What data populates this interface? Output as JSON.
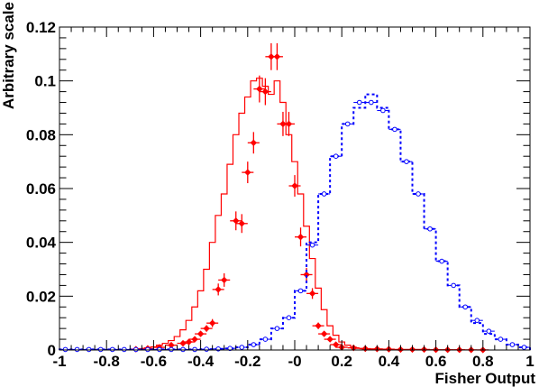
{
  "chart_data": {
    "type": "line",
    "title": "",
    "xlabel": "Fisher Output",
    "ylabel": "Arbitrary scale",
    "xlim": [
      -1,
      1
    ],
    "ylim": [
      0,
      0.12
    ],
    "x_ticks": [
      -1,
      -0.8,
      -0.6,
      -0.4,
      -0.2,
      0,
      0.2,
      0.4,
      0.6,
      0.8,
      1
    ],
    "x_tick_labels": [
      "-1",
      "-0.8",
      "-0.6",
      "-0.4",
      "-0.2",
      "-0",
      "0.2",
      "0.4",
      "0.6",
      "0.8",
      "1"
    ],
    "y_ticks": [
      0,
      0.02,
      0.04,
      0.06,
      0.08,
      0.1,
      0.12
    ],
    "y_tick_labels": [
      "0",
      "0.02",
      "0.04",
      "0.06",
      "0.08",
      "0.1",
      "0.12"
    ],
    "grid": false,
    "legend": "none",
    "bin_edges": [
      -1.0,
      -0.95,
      -0.9,
      -0.85,
      -0.8,
      -0.75,
      -0.7,
      -0.65,
      -0.6,
      -0.55,
      -0.5,
      -0.45,
      -0.4,
      -0.35,
      -0.3,
      -0.25,
      -0.2,
      -0.15,
      -0.1,
      -0.05,
      0.0,
      0.05,
      0.1,
      0.15,
      0.2,
      0.25,
      0.3,
      0.35,
      0.4,
      0.45,
      0.5,
      0.55,
      0.6,
      0.65,
      0.7,
      0.75,
      0.8,
      0.85,
      0.9,
      0.95,
      1.0
    ],
    "bin_width": 0.05,
    "series": [
      {
        "style": "histogram",
        "color": "#ff0000",
        "bin_centers": [
          -0.675,
          -0.65,
          -0.625,
          -0.6,
          -0.575,
          -0.55,
          -0.525,
          -0.5,
          -0.475,
          -0.45,
          -0.425,
          -0.4,
          -0.375,
          -0.35,
          -0.325,
          -0.3,
          -0.275,
          -0.25,
          -0.225,
          -0.2,
          -0.175,
          -0.15,
          -0.125,
          -0.1,
          -0.075,
          -0.05,
          -0.025,
          0.0,
          0.025,
          0.05,
          0.075,
          0.1,
          0.125,
          0.15,
          0.175,
          0.2,
          0.225,
          0.25,
          0.275,
          0.3,
          0.325,
          0.35,
          0.375,
          0.4,
          0.425,
          0.45
        ],
        "values": [
          0.0003,
          0.0005,
          0.0008,
          0.0012,
          0.0018,
          0.0025,
          0.0035,
          0.005,
          0.0075,
          0.011,
          0.016,
          0.022,
          0.03,
          0.04,
          0.05,
          0.058,
          0.069,
          0.08,
          0.088,
          0.094,
          0.1,
          0.101,
          0.098,
          0.095,
          0.1,
          0.092,
          0.08,
          0.07,
          0.058,
          0.046,
          0.034,
          0.023,
          0.015,
          0.009,
          0.0055,
          0.003,
          0.0018,
          0.001,
          0.0006,
          0.0003,
          0.0002,
          0.0001,
          5e-05,
          3e-05,
          2e-05,
          1e-05
        ]
      },
      {
        "style": "points",
        "color": "#ff0000",
        "x": [
          -0.675,
          -0.625,
          -0.575,
          -0.525,
          -0.475,
          -0.45,
          -0.425,
          -0.4,
          -0.375,
          -0.35,
          -0.325,
          -0.3,
          -0.25,
          -0.225,
          -0.2,
          -0.175,
          -0.15,
          -0.125,
          -0.1,
          -0.075,
          -0.05,
          -0.025,
          0.0,
          0.025,
          0.05,
          0.075,
          0.1,
          0.125,
          0.15,
          0.175,
          0.2,
          0.25,
          0.3,
          0.35,
          0.4,
          0.45,
          0.5,
          0.55,
          0.6,
          0.65,
          0.7,
          0.75,
          0.8
        ],
        "values": [
          0.0003,
          0.0006,
          0.001,
          0.0018,
          0.0025,
          0.003,
          0.004,
          0.006,
          0.008,
          0.01,
          0.0225,
          0.026,
          0.048,
          0.047,
          0.066,
          0.077,
          0.097,
          0.096,
          0.109,
          0.109,
          0.084,
          0.084,
          0.061,
          0.042,
          0.028,
          0.021,
          0.009,
          0.006,
          0.004,
          0.002,
          0.001,
          0.0008,
          0.0005,
          0.0004,
          0.0003,
          0.0002,
          0.0002,
          0.0002,
          0.0001,
          0.0001,
          0.0001,
          5e-05,
          3e-05
        ],
        "x_error": 0.025,
        "y_errors": [
          0.0003,
          0.0003,
          0.0004,
          0.0005,
          0.0006,
          0.0006,
          0.0008,
          0.001,
          0.0012,
          0.0015,
          0.0022,
          0.0025,
          0.0035,
          0.0035,
          0.004,
          0.004,
          0.005,
          0.005,
          0.005,
          0.005,
          0.0045,
          0.0045,
          0.004,
          0.0035,
          0.0025,
          0.002,
          0.0012,
          0.001,
          0.0008,
          0.0005,
          0.0004,
          0.0003,
          0.0003,
          0.0002,
          0.0002,
          0.0002,
          0.0002,
          0.0002,
          0.0001,
          0.0001,
          0.0001,
          0.0001,
          0.0001
        ]
      },
      {
        "style": "histogram-dashed",
        "color": "#0000ff",
        "bin_centers": [
          -0.975,
          -0.925,
          -0.875,
          -0.825,
          -0.775,
          -0.725,
          -0.675,
          -0.625,
          -0.575,
          -0.525,
          -0.475,
          -0.425,
          -0.375,
          -0.325,
          -0.275,
          -0.225,
          -0.175,
          -0.125,
          -0.075,
          -0.025,
          0.025,
          0.075,
          0.125,
          0.175,
          0.225,
          0.275,
          0.325,
          0.375,
          0.425,
          0.475,
          0.525,
          0.575,
          0.625,
          0.675,
          0.725,
          0.775,
          0.825,
          0.875,
          0.925,
          0.975
        ],
        "values": [
          0.0002,
          0.0002,
          0.0002,
          0.0002,
          0.0002,
          0.0002,
          0.0002,
          0.0002,
          0.0002,
          0.0002,
          0.0002,
          0.0002,
          0.0003,
          0.0004,
          0.0006,
          0.001,
          0.002,
          0.004,
          0.008,
          0.012,
          0.022,
          0.04,
          0.058,
          0.072,
          0.084,
          0.09,
          0.095,
          0.09,
          0.082,
          0.07,
          0.058,
          0.045,
          0.033,
          0.024,
          0.016,
          0.01,
          0.006,
          0.004,
          0.002,
          0.001
        ]
      },
      {
        "style": "points-open",
        "color": "#0000ff",
        "x": [
          -0.975,
          -0.925,
          -0.875,
          -0.825,
          -0.775,
          -0.725,
          -0.675,
          -0.625,
          -0.575,
          -0.525,
          -0.475,
          -0.425,
          -0.375,
          -0.325,
          -0.275,
          -0.225,
          -0.175,
          -0.125,
          -0.075,
          -0.025,
          0.025,
          0.075,
          0.125,
          0.175,
          0.225,
          0.275,
          0.325,
          0.375,
          0.425,
          0.475,
          0.525,
          0.575,
          0.625,
          0.675,
          0.725,
          0.775,
          0.825,
          0.875,
          0.925,
          0.975
        ],
        "values": [
          0.0002,
          0.0002,
          0.0002,
          0.0002,
          0.0002,
          0.0002,
          0.0002,
          0.0002,
          0.0002,
          0.0002,
          0.0002,
          0.0002,
          0.0003,
          0.0004,
          0.0006,
          0.001,
          0.002,
          0.004,
          0.008,
          0.012,
          0.022,
          0.039,
          0.058,
          0.072,
          0.084,
          0.092,
          0.092,
          0.089,
          0.082,
          0.07,
          0.058,
          0.045,
          0.033,
          0.024,
          0.016,
          0.011,
          0.007,
          0.004,
          0.002,
          0.001
        ]
      }
    ]
  }
}
